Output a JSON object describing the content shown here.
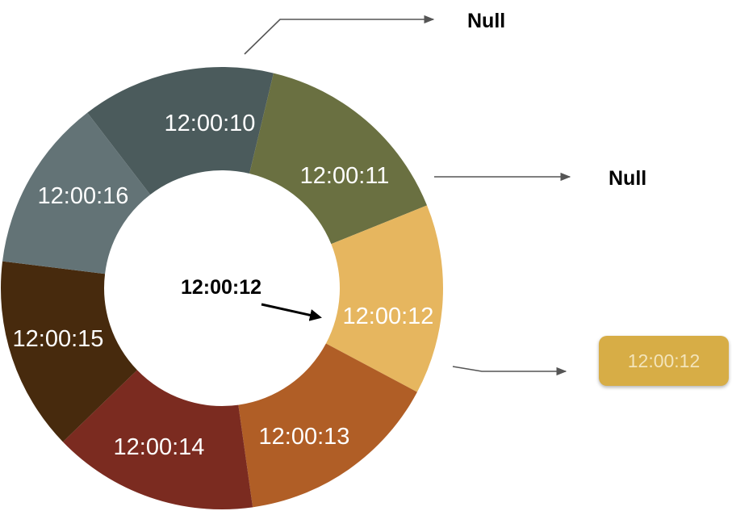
{
  "ring": {
    "segments": [
      {
        "label": "12:00:10",
        "color": "#4b5b5c"
      },
      {
        "label": "12:00:11",
        "color": "#6a7041"
      },
      {
        "label": "12:00:12",
        "color": "#e6b65f"
      },
      {
        "label": "12:00:13",
        "color": "#b05e26"
      },
      {
        "label": "12:00:14",
        "color": "#7b2b20"
      },
      {
        "label": "12:00:15",
        "color": "#472a0d"
      },
      {
        "label": "12:00:16",
        "color": "#637376"
      }
    ],
    "center_label": "12:00:12"
  },
  "outputs": {
    "null_top": "Null",
    "null_middle": "Null",
    "result_box": "12:00:12"
  },
  "colors": {
    "result_box": "#d7ad46",
    "result_text": "#f3e4ba",
    "pointer": "#000000",
    "connector": "#555555"
  }
}
